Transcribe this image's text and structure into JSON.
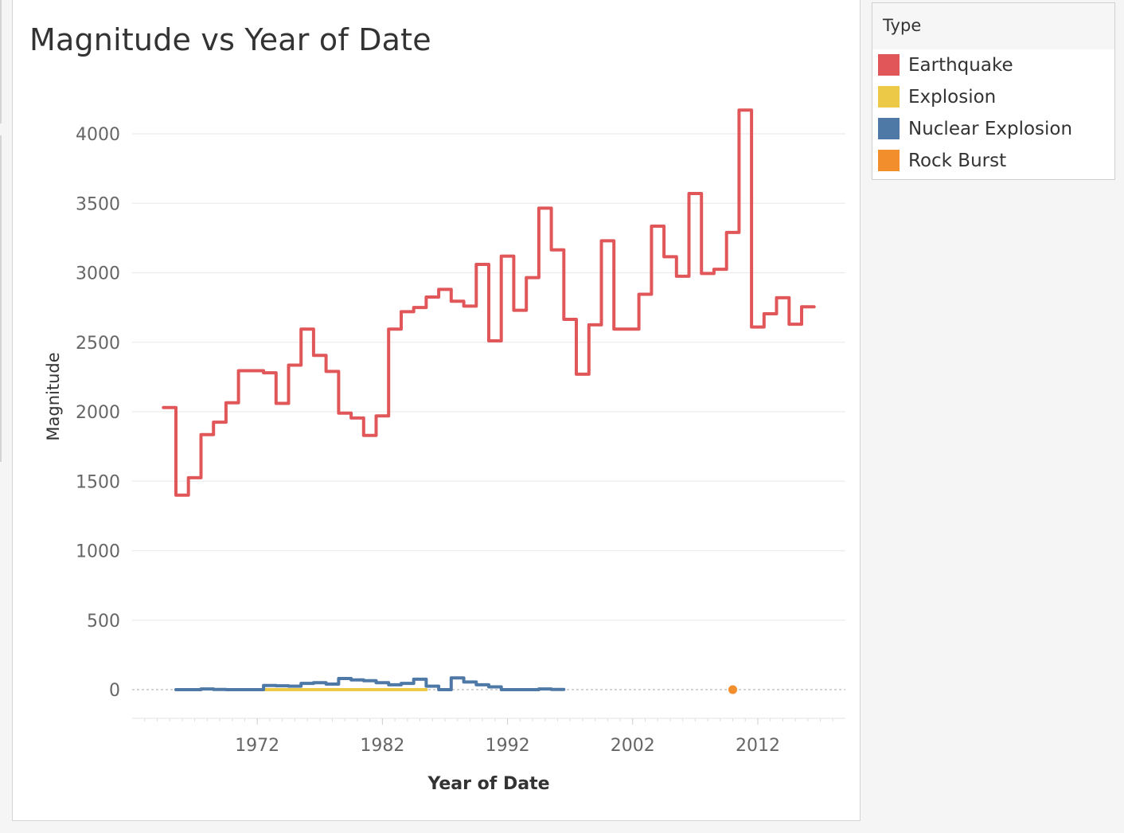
{
  "chart_data": {
    "type": "line",
    "title": "Magnitude vs Year of Date",
    "xlabel": "Year of Date",
    "ylabel": "Magnitude",
    "xlim": [
      1962,
      2019
    ],
    "ylim": [
      -200,
      4300
    ],
    "xticks": [
      1972,
      1982,
      1992,
      2002,
      2012
    ],
    "yticks": [
      0,
      500,
      1000,
      1500,
      2000,
      2500,
      3000,
      3500,
      4000
    ],
    "grid": true,
    "line_shape": "step",
    "legend_title": "Type",
    "legend_position": "right",
    "series": [
      {
        "name": "Earthquake",
        "color": "#e15759",
        "x": [
          1965,
          1966,
          1967,
          1968,
          1969,
          1970,
          1971,
          1972,
          1973,
          1974,
          1975,
          1976,
          1977,
          1978,
          1979,
          1980,
          1981,
          1982,
          1983,
          1984,
          1985,
          1986,
          1987,
          1988,
          1989,
          1990,
          1991,
          1992,
          1993,
          1994,
          1995,
          1996,
          1997,
          1998,
          1999,
          2000,
          2001,
          2002,
          2003,
          2004,
          2005,
          2006,
          2007,
          2008,
          2009,
          2010,
          2011,
          2012,
          2013,
          2014,
          2015,
          2016
        ],
        "y": [
          2030,
          1400,
          1525,
          1835,
          1925,
          2065,
          2295,
          2295,
          2280,
          2060,
          2335,
          2595,
          2405,
          2290,
          1990,
          1955,
          1830,
          1970,
          2595,
          2720,
          2750,
          2825,
          2880,
          2795,
          2760,
          3060,
          2510,
          3120,
          2730,
          2965,
          3465,
          3165,
          2665,
          2270,
          2625,
          3230,
          2595,
          2595,
          2845,
          3335,
          3115,
          2975,
          3570,
          2995,
          3025,
          3290,
          4170,
          2610,
          2705,
          2820,
          2630,
          2755
        ]
      },
      {
        "name": "Explosion",
        "color": "#edc948",
        "x": [
          1973,
          1974,
          1975,
          1976,
          1977,
          1978,
          1979,
          1980,
          1981,
          1982,
          1983,
          1984,
          1985
        ],
        "y": [
          0,
          0,
          0,
          0,
          0,
          0,
          0,
          0,
          0,
          0,
          0,
          0,
          0
        ]
      },
      {
        "name": "Nuclear Explosion",
        "color": "#4e79a7",
        "x": [
          1966,
          1967,
          1968,
          1969,
          1970,
          1971,
          1972,
          1973,
          1974,
          1975,
          1976,
          1977,
          1978,
          1979,
          1980,
          1981,
          1982,
          1983,
          1984,
          1985,
          1986,
          1987,
          1988,
          1989,
          1990,
          1991,
          1992,
          1993,
          1994,
          1995,
          1996
        ],
        "y": [
          0,
          0,
          5,
          2,
          0,
          0,
          0,
          30,
          28,
          25,
          45,
          50,
          40,
          80,
          70,
          65,
          50,
          35,
          45,
          75,
          25,
          0,
          85,
          55,
          35,
          20,
          0,
          0,
          0,
          5,
          2
        ]
      },
      {
        "name": "Rock Burst",
        "color": "#f28e2b",
        "x": [
          2010
        ],
        "y": [
          0
        ]
      }
    ]
  }
}
